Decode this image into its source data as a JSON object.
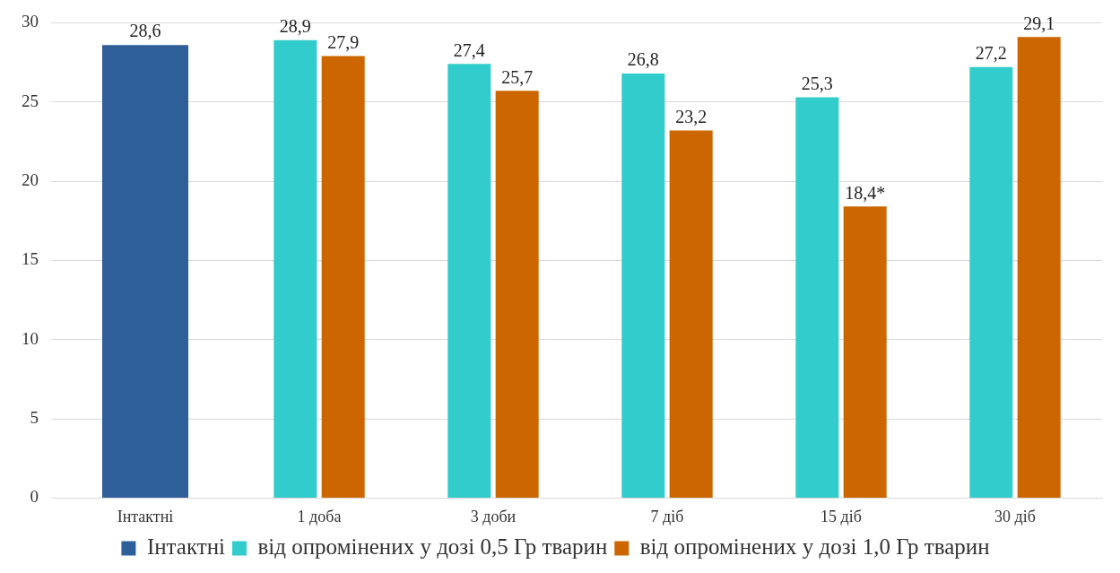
{
  "chart_data": {
    "type": "bar",
    "categories": [
      "Інтактні",
      "1 доба",
      "3 доби",
      "7 діб",
      "15 діб",
      "30 діб"
    ],
    "series": [
      {
        "name": "Інтактні",
        "color": "#2e5f99",
        "values": [
          28.6,
          null,
          null,
          null,
          null,
          null
        ],
        "value_labels": [
          "28,6",
          null,
          null,
          null,
          null,
          null
        ]
      },
      {
        "name": "від опромінених у дозі 0,5 Гр тварин",
        "color": "#33cccc",
        "values": [
          null,
          28.9,
          27.4,
          26.8,
          25.3,
          27.2
        ],
        "value_labels": [
          null,
          "28,9",
          "27,4",
          "26,8",
          "25,3",
          "27,2"
        ]
      },
      {
        "name": "від опромінених у дозі 1,0 Гр тварин",
        "color": "#cc6600",
        "values": [
          null,
          27.9,
          25.7,
          23.2,
          18.4,
          29.1
        ],
        "value_labels": [
          null,
          "27,9",
          "25,7",
          "23,2",
          "18,4*",
          "29,1"
        ]
      }
    ],
    "ylim": [
      0,
      30
    ],
    "yticks": [
      0,
      5,
      10,
      15,
      20,
      25,
      30
    ],
    "grid": "y",
    "legend": "bottom"
  }
}
